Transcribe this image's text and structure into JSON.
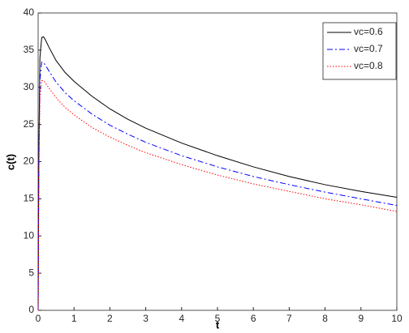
{
  "chart_data": {
    "type": "line",
    "x_label": "t",
    "y_label": "c(t)",
    "x": [
      0,
      0.02,
      0.05,
      0.1,
      0.15,
      0.2,
      0.3,
      0.5,
      0.75,
      1,
      1.5,
      2,
      2.5,
      3,
      4,
      5,
      6,
      7,
      8,
      9,
      10
    ],
    "series": [
      {
        "name": "vc=0.6",
        "color": "#000000",
        "linestyle": "solid",
        "values": [
          0,
          22,
          34,
          36.7,
          36.8,
          36.4,
          35.4,
          33.6,
          32,
          30.8,
          28.8,
          27.1,
          25.7,
          24.5,
          22.5,
          20.8,
          19.3,
          18,
          16.9,
          16,
          15.2
        ]
      },
      {
        "name": "vc=0.7",
        "color": "#0000ff",
        "linestyle": "dashdot",
        "values": [
          0,
          20,
          31,
          33.4,
          33.3,
          33,
          32.2,
          30.7,
          29.3,
          28.2,
          26.4,
          24.9,
          23.7,
          22.6,
          20.8,
          19.3,
          18,
          16.9,
          15.9,
          15,
          14.1
        ]
      },
      {
        "name": "vc=0.8",
        "color": "#ff0000",
        "linestyle": "dotted",
        "values": [
          0,
          18,
          28.6,
          30.9,
          30.9,
          30.6,
          29.9,
          28.6,
          27.3,
          26.3,
          24.6,
          23.3,
          22.2,
          21.2,
          19.6,
          18.2,
          17,
          16,
          15,
          14.2,
          13.3
        ]
      }
    ],
    "xlim": [
      0,
      10
    ],
    "xticks": [
      0,
      1,
      2,
      3,
      4,
      5,
      6,
      7,
      8,
      9,
      10
    ],
    "ylim": [
      0,
      40
    ],
    "yticks": [
      0,
      5,
      10,
      15,
      20,
      25,
      30,
      35,
      40
    ],
    "grid": false,
    "legend": "upper right"
  }
}
